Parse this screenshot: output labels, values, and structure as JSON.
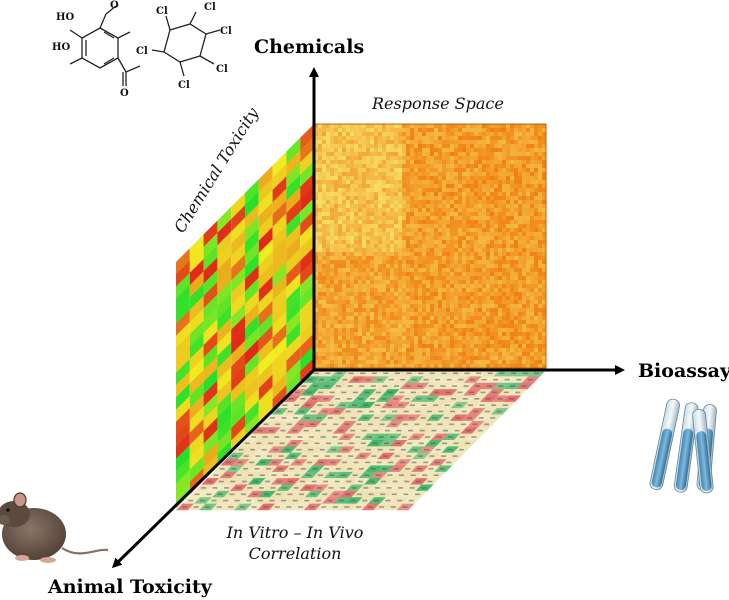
{
  "axes": {
    "chemicals": "Chemicals",
    "bioassays": "Bioassays",
    "animal_toxicity": "Animal Toxicity"
  },
  "panels": {
    "response_space": "Response Space",
    "chemical_toxicity": "Chemical Toxicity",
    "correlation_line1": "In Vitro – In Vivo",
    "correlation_line2": "Correlation"
  },
  "molecule_labels": {
    "hydroxyl": "HO",
    "oxygen": "O",
    "chlorine": "Cl"
  },
  "colors": {
    "axis": "#000000",
    "heat_low": "#f07d10",
    "heat_high": "#f7e46a",
    "tox_green": "#22e02a",
    "tox_yellow": "#f0ee20",
    "tox_red": "#e02818",
    "corr_red": "#e46c6c",
    "corr_green": "#3fb66a",
    "corr_cream": "#f3ebc4"
  },
  "icons": [
    "rat-icon",
    "test-tubes-icon",
    "molecule-icon"
  ]
}
